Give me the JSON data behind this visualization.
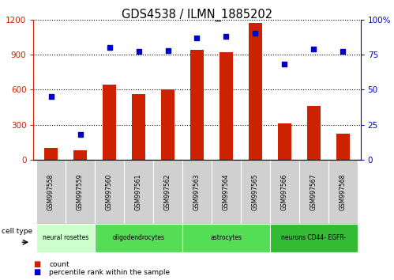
{
  "title": "GDS4538 / ILMN_1885202",
  "samples": [
    "GSM997558",
    "GSM997559",
    "GSM997560",
    "GSM997561",
    "GSM997562",
    "GSM997563",
    "GSM997564",
    "GSM997565",
    "GSM997566",
    "GSM997567",
    "GSM997568"
  ],
  "counts": [
    100,
    80,
    640,
    560,
    600,
    940,
    920,
    1170,
    310,
    460,
    220
  ],
  "percentile_ranks": [
    45,
    18,
    80,
    77,
    78,
    87,
    88,
    90,
    68,
    79,
    77
  ],
  "cell_types": [
    {
      "label": "neural rosettes",
      "start": 0,
      "end": 2,
      "color": "#ccffcc"
    },
    {
      "label": "oligodendrocytes",
      "start": 2,
      "end": 5,
      "color": "#55dd55"
    },
    {
      "label": "astrocytes",
      "start": 5,
      "end": 8,
      "color": "#55dd55"
    },
    {
      "label": "neurons CD44- EGFR-",
      "start": 8,
      "end": 11,
      "color": "#33bb33"
    }
  ],
  "ylim_left": [
    0,
    1200
  ],
  "ylim_right": [
    0,
    100
  ],
  "yticks_left": [
    0,
    300,
    600,
    900,
    1200
  ],
  "yticks_right": [
    0,
    25,
    50,
    75,
    100
  ],
  "bar_color": "#cc2200",
  "dot_color": "#0000cc",
  "count_label": "count",
  "percentile_label": "percentile rank within the sample",
  "cell_type_label": "cell type",
  "fig_width": 4.99,
  "fig_height": 3.54,
  "dpi": 100
}
